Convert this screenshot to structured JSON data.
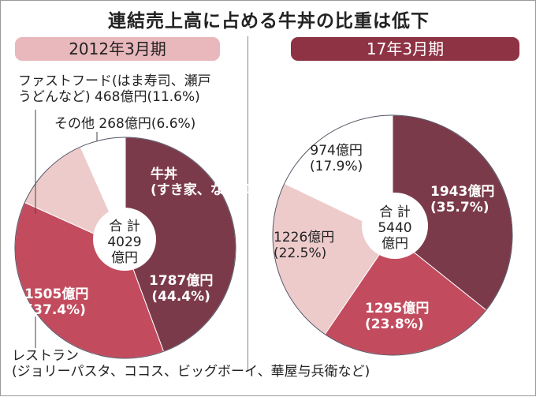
{
  "title": "連結売上高に占める牛丼の比重は低下",
  "colors": {
    "gyudon": "#7b3a4a",
    "restaurant": "#c24c5e",
    "fastfood": "#eecbcb",
    "other": "#ffffff",
    "banner_left": "#e8b8bc",
    "banner_right": "#8e3344"
  },
  "chart_data": [
    {
      "type": "pie",
      "title": "2012年3月期",
      "unit": "億円",
      "total_label": "合 計",
      "total": "4029",
      "total_unit": "億円",
      "slices": [
        {
          "name": "牛丼",
          "sub": "(すき家、なか卯)",
          "value": 1787,
          "value_label": "1787億円",
          "pct": "(44.4%)",
          "color": "#7b3a4a"
        },
        {
          "name": "レストラン",
          "sub": "(ジョリーパスタ、ココス、ビッグボーイ、華屋与兵衛など)",
          "value": 1505,
          "value_label": "1505億円",
          "pct": "(37.4%)",
          "color": "#c24c5e"
        },
        {
          "name": "ファストフード(はま寿司、瀬戸",
          "sub": "うどんなど)",
          "value": 468,
          "value_label": "468億円",
          "pct": "(11.6%)",
          "color": "#eecbcb"
        },
        {
          "name": "その他",
          "value": 268,
          "value_label": "268億円",
          "pct": "(6.6%)",
          "color": "#ffffff"
        }
      ]
    },
    {
      "type": "pie",
      "title": "17年3月期",
      "unit": "億円",
      "total_label": "合 計",
      "total": "5440",
      "total_unit": "億円",
      "slices": [
        {
          "value": 1943,
          "value_label": "1943億円",
          "pct": "(35.7%)",
          "color": "#7b3a4a"
        },
        {
          "value": 1295,
          "value_label": "1295億円",
          "pct": "(23.8%)",
          "color": "#c24c5e"
        },
        {
          "value": 1226,
          "value_label": "1226億円",
          "pct": "(22.5%)",
          "color": "#eecbcb"
        },
        {
          "value": 974,
          "value_label": "974億円",
          "pct": "(17.9%)",
          "color": "#ffffff"
        }
      ]
    }
  ]
}
